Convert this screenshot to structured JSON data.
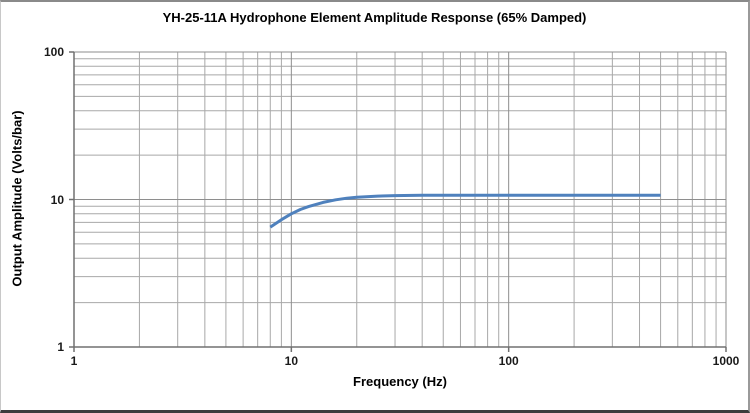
{
  "chart_data": {
    "type": "line",
    "title": "YH-25-11A Hydrophone Element Amplitude Response (65% Damped)",
    "xlabel": "Frequency (Hz)",
    "ylabel": "Output Amplitude (Volts/bar)",
    "x_scale": "log",
    "y_scale": "log",
    "xlim": [
      1,
      1000
    ],
    "ylim": [
      1,
      100
    ],
    "x_ticks": [
      1,
      10,
      100,
      1000
    ],
    "x_tick_labels": [
      "1",
      "10",
      "100",
      "1000"
    ],
    "y_ticks": [
      1,
      10,
      100
    ],
    "y_tick_labels": [
      "1",
      "10",
      "100"
    ],
    "grid": {
      "major": true,
      "minor": true,
      "major_color": "#8e8e8e",
      "minor_color": "#a8a8a8"
    },
    "axis_color": "#707070",
    "legend_position": "none",
    "series": [
      {
        "name": "amplitude-response",
        "color": "#4F81BD",
        "width": 3,
        "points": [
          [
            8,
            6.5
          ],
          [
            9,
            7.3
          ],
          [
            10,
            8.0
          ],
          [
            11,
            8.55
          ],
          [
            12,
            8.95
          ],
          [
            14,
            9.55
          ],
          [
            16,
            9.95
          ],
          [
            18,
            10.2
          ],
          [
            20,
            10.35
          ],
          [
            25,
            10.55
          ],
          [
            30,
            10.63
          ],
          [
            40,
            10.68
          ],
          [
            60,
            10.7
          ],
          [
            100,
            10.7
          ],
          [
            150,
            10.7
          ],
          [
            200,
            10.7
          ],
          [
            300,
            10.7
          ],
          [
            400,
            10.7
          ],
          [
            500,
            10.7
          ]
        ]
      }
    ]
  }
}
